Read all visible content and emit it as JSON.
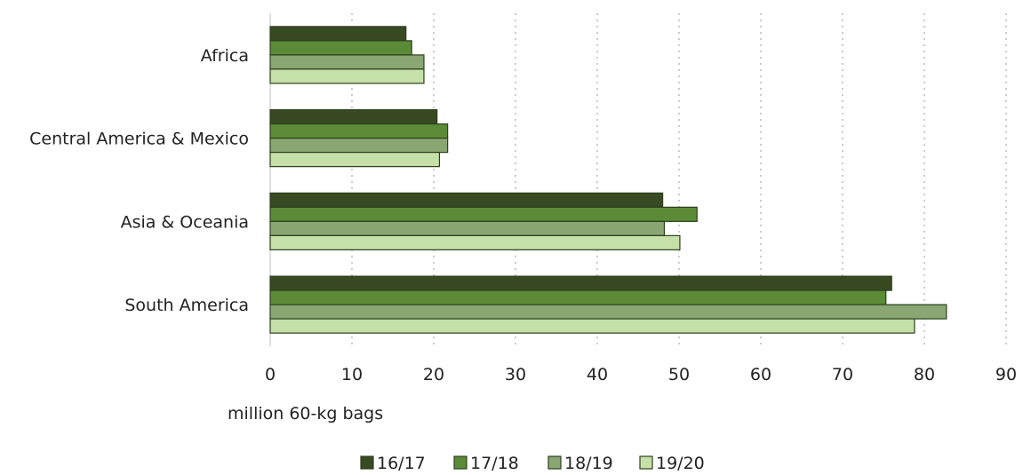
{
  "chart_data": {
    "type": "bar",
    "orientation": "horizontal",
    "categories": [
      "Africa",
      "Central America & Mexico",
      "Asia & Oceania",
      "South America"
    ],
    "series": [
      {
        "name": "16/17",
        "color": "#374a21",
        "values": [
          16.6,
          20.4,
          48.0,
          76.0
        ]
      },
      {
        "name": "17/18",
        "color": "#5b8b36",
        "values": [
          17.3,
          21.7,
          52.2,
          75.3
        ]
      },
      {
        "name": "18/19",
        "color": "#8aa672",
        "values": [
          18.8,
          21.7,
          48.2,
          82.7
        ]
      },
      {
        "name": "19/20",
        "color": "#c5e0a8",
        "values": [
          18.8,
          20.7,
          50.1,
          78.8
        ]
      }
    ],
    "xlabel": "million 60-kg bags",
    "xlim": [
      0,
      90
    ],
    "xticks": [
      "0",
      "10",
      "20",
      "30",
      "40",
      "50",
      "60",
      "70",
      "80",
      "90"
    ],
    "grid": "vertical-dotted",
    "legend_position": "bottom"
  }
}
